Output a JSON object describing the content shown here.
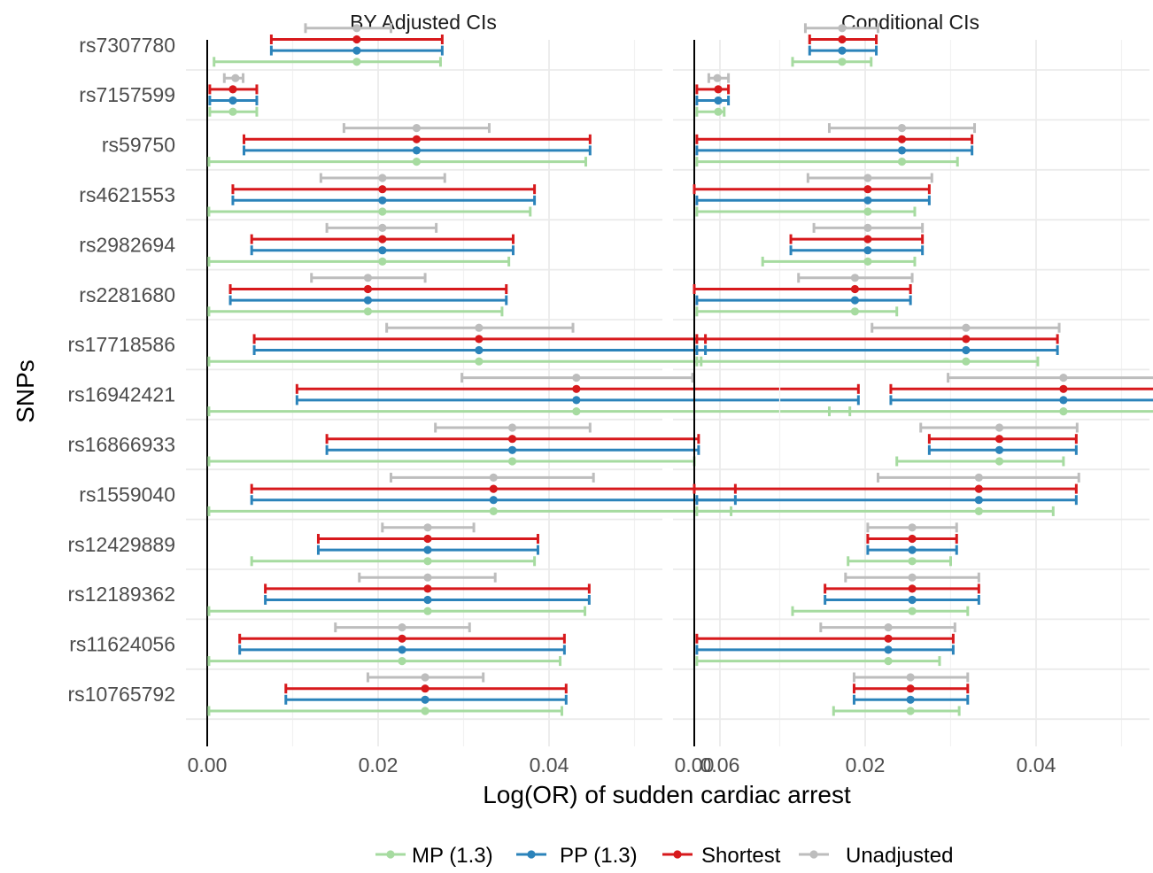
{
  "chart_data": {
    "type": "errorbar",
    "xlabel": "Log(OR) of sudden cardiac arrest",
    "ylabel": "SNPs",
    "xlim": [
      0,
      0.08
    ],
    "xticks": [
      "0.00",
      "0.02",
      "0.04",
      "0.06"
    ],
    "grid": true,
    "legend_position": "bottom",
    "series_names": [
      "MP (1.3)",
      "PP (1.3)",
      "Shortest",
      "Unadjusted"
    ],
    "colors": {
      "MP (1.3)": "#a6dba0",
      "PP (1.3)": "#2b83ba",
      "Shortest": "#d7191c",
      "Unadjusted": "#bdbdbd"
    },
    "snps": [
      "rs7307780",
      "rs7157599",
      "rs59750",
      "rs4621553",
      "rs2982694",
      "rs2281680",
      "rs17718586",
      "rs16942421",
      "rs16866933",
      "rs1559040",
      "rs12429889",
      "rs12189362",
      "rs11624056",
      "rs10765792"
    ],
    "panels": [
      {
        "title": "BY Adjusted CIs",
        "data": {
          "rs7307780": {
            "Unadjusted": [
              0.0175,
              0.0115,
              0.0215
            ],
            "Shortest": [
              0.0175,
              0.0075,
              0.0275
            ],
            "PP (1.3)": [
              0.0175,
              0.0075,
              0.0275
            ],
            "MP (1.3)": [
              0.0175,
              0.0008,
              0.0273
            ]
          },
          "rs7157599": {
            "Unadjusted": [
              0.0033,
              0.002,
              0.0042
            ],
            "Shortest": [
              0.003,
              0.0003,
              0.0058
            ],
            "PP (1.3)": [
              0.003,
              0.0003,
              0.0058
            ],
            "MP (1.3)": [
              0.003,
              0.0003,
              0.0058
            ]
          },
          "rs59750": {
            "Unadjusted": [
              0.0245,
              0.016,
              0.033
            ],
            "Shortest": [
              0.0245,
              0.0043,
              0.0448
            ],
            "PP (1.3)": [
              0.0245,
              0.0043,
              0.0448
            ],
            "MP (1.3)": [
              0.0245,
              0.0002,
              0.0443
            ]
          },
          "rs4621553": {
            "Unadjusted": [
              0.0205,
              0.0133,
              0.0278
            ],
            "Shortest": [
              0.0205,
              0.003,
              0.0383
            ],
            "PP (1.3)": [
              0.0205,
              0.003,
              0.0383
            ],
            "MP (1.3)": [
              0.0205,
              0.0002,
              0.0378
            ]
          },
          "rs2982694": {
            "Unadjusted": [
              0.0205,
              0.014,
              0.0268
            ],
            "Shortest": [
              0.0205,
              0.0052,
              0.0358
            ],
            "PP (1.3)": [
              0.0205,
              0.0052,
              0.0358
            ],
            "MP (1.3)": [
              0.0205,
              0.0002,
              0.0353
            ]
          },
          "rs2281680": {
            "Unadjusted": [
              0.0188,
              0.0122,
              0.0255
            ],
            "Shortest": [
              0.0188,
              0.0027,
              0.035
            ],
            "PP (1.3)": [
              0.0188,
              0.0027,
              0.035
            ],
            "MP (1.3)": [
              0.0188,
              0.0002,
              0.0345
            ]
          },
          "rs17718586": {
            "Unadjusted": [
              0.0318,
              0.021,
              0.0428
            ],
            "Shortest": [
              0.0318,
              0.0055,
              0.0583
            ],
            "PP (1.3)": [
              0.0318,
              0.0055,
              0.0583
            ],
            "MP (1.3)": [
              0.0318,
              0.0002,
              0.0578
            ]
          },
          "rs16942421": {
            "Unadjusted": [
              0.0432,
              0.0298,
              0.0568
            ],
            "Shortest": [
              0.0432,
              0.0105,
              0.0762
            ],
            "PP (1.3)": [
              0.0432,
              0.0105,
              0.0762
            ],
            "MP (1.3)": [
              0.0432,
              0.0002,
              0.0752
            ]
          },
          "rs16866933": {
            "Unadjusted": [
              0.0357,
              0.0267,
              0.0448
            ],
            "Shortest": [
              0.0357,
              0.014,
              0.0575
            ],
            "PP (1.3)": [
              0.0357,
              0.014,
              0.0575
            ],
            "MP (1.3)": [
              0.0357,
              0.0002,
              0.057
            ]
          },
          "rs1559040": {
            "Unadjusted": [
              0.0335,
              0.0215,
              0.0452
            ],
            "Shortest": [
              0.0335,
              0.0052,
              0.0618
            ],
            "PP (1.3)": [
              0.0335,
              0.0052,
              0.0618
            ],
            "MP (1.3)": [
              0.0335,
              0.0002,
              0.0613
            ]
          },
          "rs12429889": {
            "Unadjusted": [
              0.0258,
              0.0205,
              0.0312
            ],
            "Shortest": [
              0.0258,
              0.013,
              0.0387
            ],
            "PP (1.3)": [
              0.0258,
              0.013,
              0.0387
            ],
            "MP (1.3)": [
              0.0258,
              0.0052,
              0.0383
            ]
          },
          "rs12189362": {
            "Unadjusted": [
              0.0258,
              0.0178,
              0.0337
            ],
            "Shortest": [
              0.0258,
              0.0068,
              0.0447
            ],
            "PP (1.3)": [
              0.0258,
              0.0068,
              0.0447
            ],
            "MP (1.3)": [
              0.0258,
              0.0002,
              0.0442
            ]
          },
          "rs11624056": {
            "Unadjusted": [
              0.0228,
              0.015,
              0.0307
            ],
            "Shortest": [
              0.0228,
              0.0038,
              0.0418
            ],
            "PP (1.3)": [
              0.0228,
              0.0038,
              0.0418
            ],
            "MP (1.3)": [
              0.0228,
              0.0002,
              0.0413
            ]
          },
          "rs10765792": {
            "Unadjusted": [
              0.0255,
              0.0188,
              0.0323
            ],
            "Shortest": [
              0.0255,
              0.0092,
              0.042
            ],
            "PP (1.3)": [
              0.0255,
              0.0092,
              0.042
            ],
            "MP (1.3)": [
              0.0255,
              0.0002,
              0.0415
            ]
          }
        }
      },
      {
        "title": "Conditional CIs",
        "data": {
          "rs7307780": {
            "Unadjusted": [
              0.0173,
              0.013,
              0.0215
            ],
            "Shortest": [
              0.0173,
              0.0135,
              0.0213
            ],
            "PP (1.3)": [
              0.0173,
              0.0135,
              0.0213
            ],
            "MP (1.3)": [
              0.0173,
              0.0115,
              0.0207
            ]
          },
          "rs7157599": {
            "Unadjusted": [
              0.0027,
              0.0017,
              0.004
            ],
            "Shortest": [
              0.0028,
              0.0003,
              0.004
            ],
            "PP (1.3)": [
              0.0028,
              0.0003,
              0.004
            ],
            "MP (1.3)": [
              0.0028,
              0.0003,
              0.0035
            ]
          },
          "rs59750": {
            "Unadjusted": [
              0.0243,
              0.0158,
              0.0328
            ],
            "Shortest": [
              0.0243,
              0.0003,
              0.0325
            ],
            "PP (1.3)": [
              0.0243,
              0.0003,
              0.0325
            ],
            "MP (1.3)": [
              0.0243,
              0.0003,
              0.0308
            ]
          },
          "rs4621553": {
            "Unadjusted": [
              0.0203,
              0.0133,
              0.0278
            ],
            "Shortest": [
              0.0203,
              0.0,
              0.0275
            ],
            "PP (1.3)": [
              0.0203,
              0.0003,
              0.0275
            ],
            "MP (1.3)": [
              0.0203,
              0.0003,
              0.0258
            ]
          },
          "rs2982694": {
            "Unadjusted": [
              0.0203,
              0.014,
              0.0267
            ],
            "Shortest": [
              0.0203,
              0.0113,
              0.0267
            ],
            "PP (1.3)": [
              0.0203,
              0.0113,
              0.0267
            ],
            "MP (1.3)": [
              0.0203,
              0.008,
              0.0258
            ]
          },
          "rs2281680": {
            "Unadjusted": [
              0.0188,
              0.0122,
              0.0255
            ],
            "Shortest": [
              0.0188,
              0.0,
              0.0253
            ],
            "PP (1.3)": [
              0.0188,
              0.0003,
              0.0253
            ],
            "MP (1.3)": [
              0.0188,
              0.0003,
              0.0237
            ]
          },
          "rs17718586": {
            "Unadjusted": [
              0.0318,
              0.0208,
              0.0427
            ],
            "Shortest": [
              0.0318,
              0.0003,
              0.0425
            ],
            "PP (1.3)": [
              0.0318,
              0.0003,
              0.0425
            ],
            "MP (1.3)": [
              0.0318,
              0.0003,
              0.0402
            ]
          },
          "rs16942421": {
            "Unadjusted": [
              0.0432,
              0.0297,
              0.0567
            ],
            "Shortest": [
              0.0432,
              0.023,
              0.0565
            ],
            "PP (1.3)": [
              0.0432,
              0.023,
              0.0565
            ],
            "MP (1.3)": [
              0.0432,
              0.0158,
              0.0543
            ]
          },
          "rs16866933": {
            "Unadjusted": [
              0.0357,
              0.0265,
              0.0448
            ],
            "Shortest": [
              0.0357,
              0.0275,
              0.0447
            ],
            "PP (1.3)": [
              0.0357,
              0.0275,
              0.0447
            ],
            "MP (1.3)": [
              0.0357,
              0.0237,
              0.0432
            ]
          },
          "rs1559040": {
            "Unadjusted": [
              0.0333,
              0.0215,
              0.045
            ],
            "Shortest": [
              0.0333,
              0.0,
              0.0447
            ],
            "PP (1.3)": [
              0.0333,
              0.0003,
              0.0447
            ],
            "MP (1.3)": [
              0.0333,
              0.0003,
              0.042
            ]
          },
          "rs12429889": {
            "Unadjusted": [
              0.0255,
              0.0203,
              0.0307
            ],
            "Shortest": [
              0.0255,
              0.0203,
              0.0307
            ],
            "PP (1.3)": [
              0.0255,
              0.0203,
              0.0307
            ],
            "MP (1.3)": [
              0.0255,
              0.018,
              0.03
            ]
          },
          "rs12189362": {
            "Unadjusted": [
              0.0255,
              0.0177,
              0.0333
            ],
            "Shortest": [
              0.0255,
              0.0153,
              0.0333
            ],
            "PP (1.3)": [
              0.0255,
              0.0153,
              0.0333
            ],
            "MP (1.3)": [
              0.0255,
              0.0115,
              0.032
            ]
          },
          "rs11624056": {
            "Unadjusted": [
              0.0227,
              0.0148,
              0.0305
            ],
            "Shortest": [
              0.0227,
              0.0003,
              0.0303
            ],
            "PP (1.3)": [
              0.0227,
              0.0003,
              0.0303
            ],
            "MP (1.3)": [
              0.0227,
              0.0003,
              0.0287
            ]
          },
          "rs10765792": {
            "Unadjusted": [
              0.0253,
              0.0187,
              0.032
            ],
            "Shortest": [
              0.0253,
              0.0187,
              0.032
            ],
            "PP (1.3)": [
              0.0253,
              0.0187,
              0.032
            ],
            "MP (1.3)": [
              0.0253,
              0.0163,
              0.031
            ]
          }
        }
      }
    ]
  }
}
